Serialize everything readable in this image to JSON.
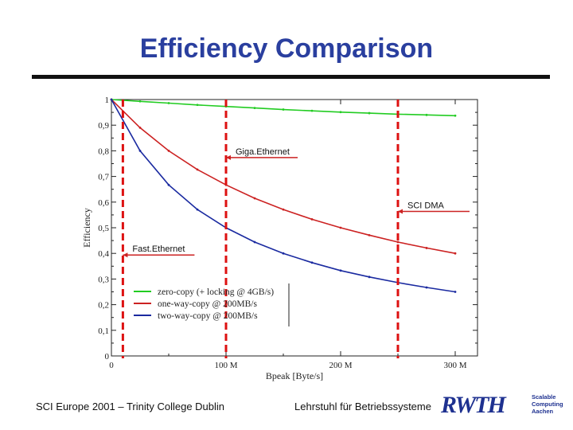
{
  "page": {
    "title": "Efficiency Comparison",
    "footer_left": "SCI Europe 2001 – Trinity College Dublin",
    "footer_right": "Lehrstuhl für Betriebssysteme",
    "logo": {
      "main": "RWTH",
      "sub": [
        "Scalable",
        "Computing",
        "Aachen"
      ]
    }
  },
  "chart_data": {
    "type": "line",
    "title": "",
    "xlabel": "Bpeak [Byte/s]",
    "ylabel": "Efficiency",
    "xlim": [
      0,
      300
    ],
    "ylim": [
      0,
      1
    ],
    "x_unit": "MB/s",
    "xticks": [
      0,
      100,
      200,
      300
    ],
    "xtick_labels": [
      "0",
      "100 M",
      "200 M",
      "300 M"
    ],
    "yticks": [
      0,
      0.1,
      0.2,
      0.3,
      0.4,
      0.5,
      0.6,
      0.7,
      0.8,
      0.9,
      1
    ],
    "ytick_labels": [
      "0",
      "0,1",
      "0,2",
      "0,3",
      "0,4",
      "0,5",
      "0,6",
      "0,7",
      "0,8",
      "0,9",
      "1"
    ],
    "x": [
      0,
      25,
      50,
      75,
      100,
      125,
      150,
      175,
      200,
      225,
      250,
      275,
      300
    ],
    "series": [
      {
        "name": "zero-copy (+ locking @ 4GB/s)",
        "color": "#22cc22",
        "values": [
          1.0,
          0.993,
          0.986,
          0.979,
          0.973,
          0.967,
          0.961,
          0.956,
          0.951,
          0.947,
          0.943,
          0.94,
          0.937
        ]
      },
      {
        "name": "one-way-copy @ 200MB/s",
        "color": "#cc2222",
        "values": [
          1.0,
          0.89,
          0.8,
          0.727,
          0.667,
          0.615,
          0.571,
          0.533,
          0.5,
          0.471,
          0.444,
          0.421,
          0.4
        ]
      },
      {
        "name": "two-way-copy @ 200MB/s",
        "color": "#1a2aa0",
        "values": [
          1.0,
          0.8,
          0.667,
          0.571,
          0.5,
          0.444,
          0.4,
          0.364,
          0.333,
          0.308,
          0.286,
          0.267,
          0.25
        ]
      }
    ],
    "markers": [
      {
        "label": "Fast.Ethernet",
        "x": 10,
        "label_y": 0.4
      },
      {
        "label": "Giga.Ethernet",
        "x": 100,
        "label_y": 0.78
      },
      {
        "label": "SCI DMA",
        "x": 250,
        "label_y": 0.57
      }
    ],
    "legend": "bottom-left"
  }
}
